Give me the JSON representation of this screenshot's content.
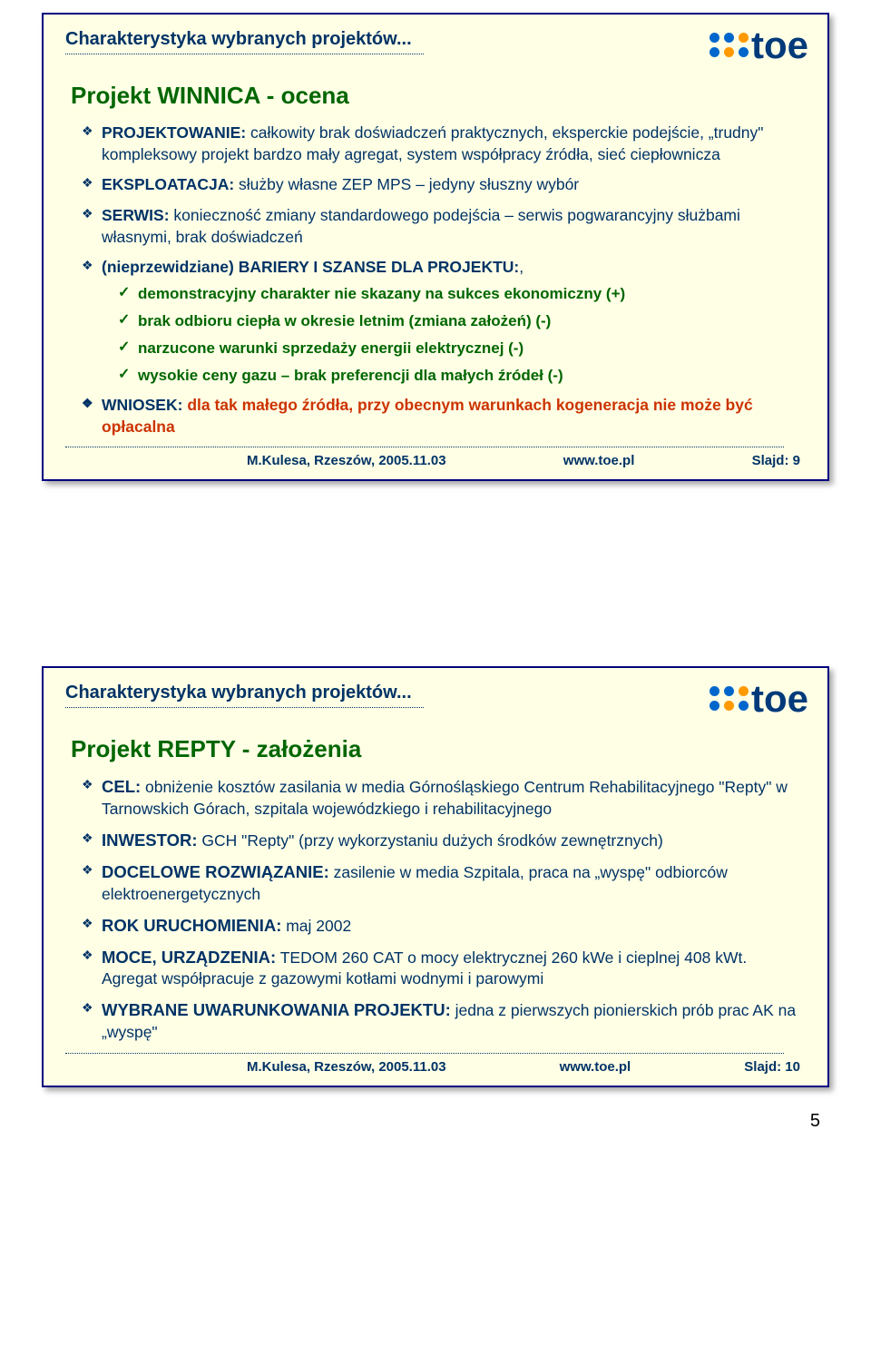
{
  "logo_text": "toe",
  "slide1": {
    "section": "Charakterystyka wybranych projektów...",
    "title": "Projekt WINNICA - ocena",
    "items": [
      {
        "lead": "PROJEKTOWANIE:",
        "body": " całkowity brak doświadczeń praktycznych, eksperckie podejście, „trudny\" kompleksowy projekt bardzo mały agregat, system współpracy źródła, sieć ciepłownicza"
      },
      {
        "lead": "EKSPLOATACJA:",
        "body": " służby własne ZEP MPS – jedyny słuszny wybór"
      },
      {
        "lead": "SERWIS:",
        "body": " konieczność zmiany standardowego podejścia – serwis pogwarancyjny służbami własnymi, brak doświadczeń"
      },
      {
        "lead": "(nieprzewidziane) BARIERY I SZANSE DLA PROJEKTU:",
        "body": ","
      }
    ],
    "subitems": [
      "demonstracyjny charakter nie skazany na sukces ekonomiczny (+)",
      "brak odbioru ciepła w okresie letnim (zmiana założeń) (-)",
      "narzucone warunki sprzedaży energii elektrycznej (-)",
      "wysokie ceny gazu – brak preferencji dla małych źródeł (-)"
    ],
    "conclusion_lead": "WNIOSEK: ",
    "conclusion_body": "dla tak małego źródła, przy obecnym warunkach kogeneracja nie może być opłacalna",
    "footer_left": "M.Kulesa, Rzeszów, 2005.11.03",
    "footer_mid": "www.toe.pl",
    "footer_right": "Slajd: 9"
  },
  "slide2": {
    "section": "Charakterystyka wybranych projektów...",
    "title": "Projekt REPTY - założenia",
    "items": [
      {
        "lead": "CEL:",
        "body": " obniżenie kosztów zasilania w media Górnośląskiego Centrum Rehabilitacyjnego \"Repty\" w Tarnowskich Górach, szpitala wojewódzkiego i rehabilitacyjnego"
      },
      {
        "lead": "INWESTOR:",
        "body": " GCH \"Repty\" (przy wykorzystaniu dużych środków zewnętrznych)"
      },
      {
        "lead": "DOCELOWE ROZWIĄZANIE:",
        "body": " zasilenie w media Szpitala, praca na „wyspę\" odbiorców elektroenergetycznych"
      },
      {
        "lead": "ROK URUCHOMIENIA:",
        "body": " maj 2002"
      },
      {
        "lead": "MOCE, URZĄDZENIA:",
        "body": " TEDOM 260 CAT o mocy elektrycznej 260 kWe i cieplnej 408 kWt. Agregat współpracuje z gazowymi kotłami wodnymi i parowymi"
      },
      {
        "lead": "WYBRANE UWARUNKOWANIA PROJEKTU:",
        "body": " jedna z pierwszych pionierskich prób prac AK na „wyspę\""
      }
    ],
    "footer_left": "M.Kulesa, Rzeszów, 2005.11.03",
    "footer_mid": "www.toe.pl",
    "footer_right": "Slajd: 10"
  },
  "page_number": "5"
}
